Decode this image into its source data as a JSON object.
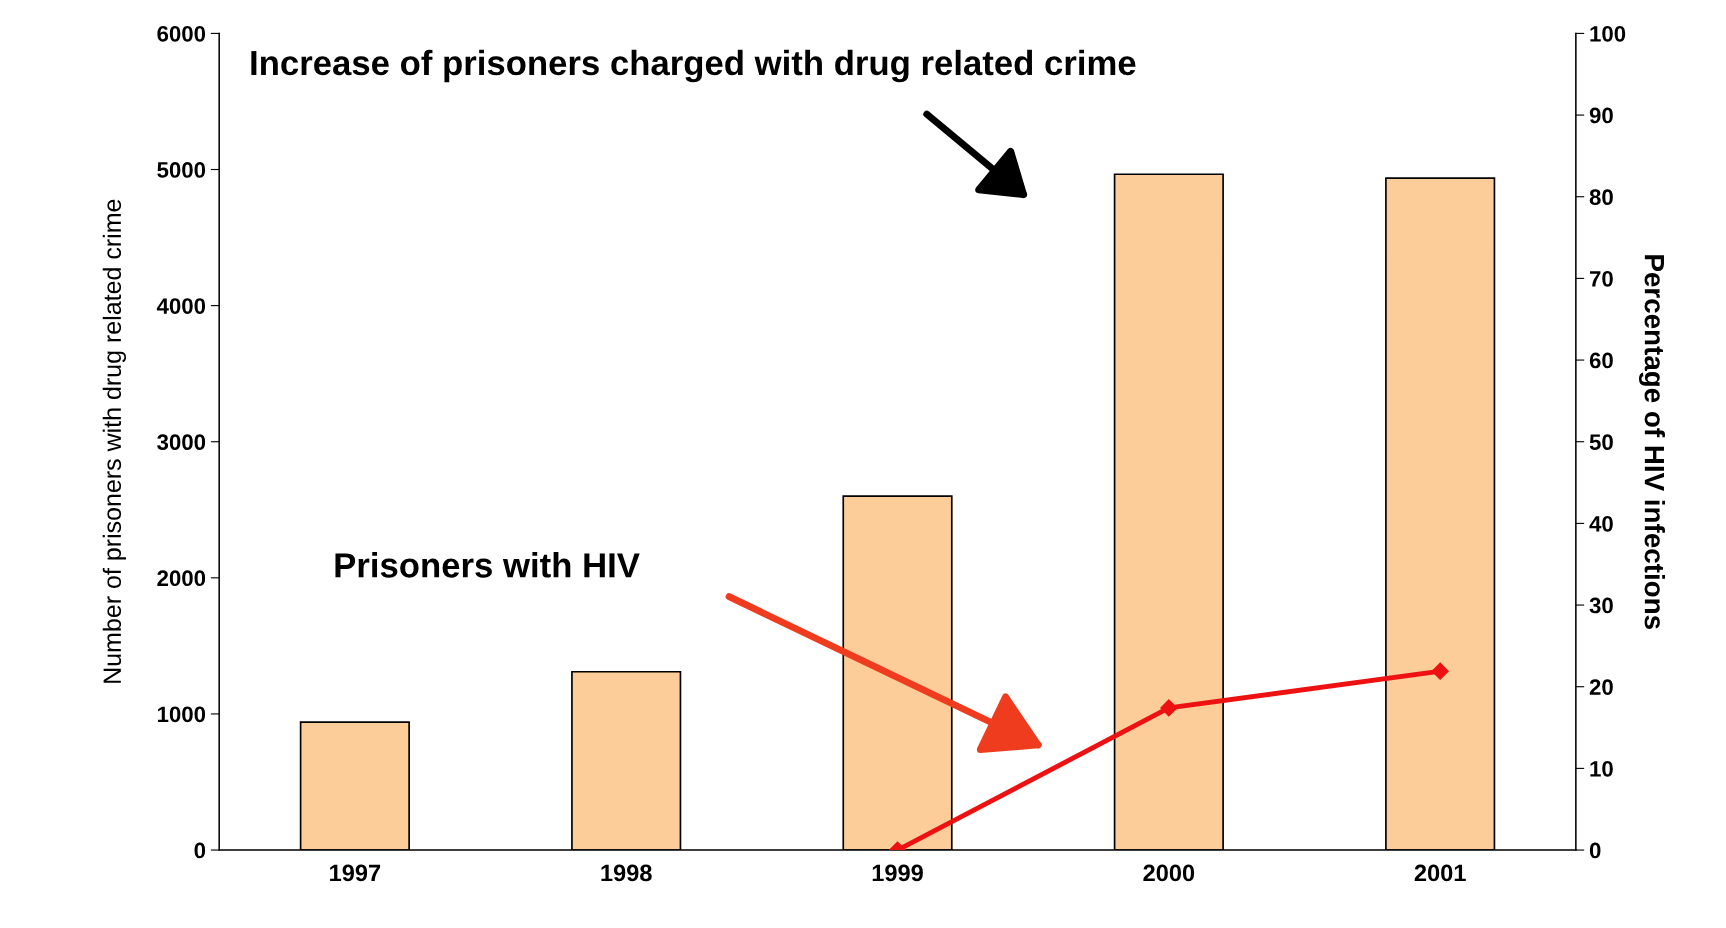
{
  "chart_data": {
    "type": "bar",
    "categories": [
      "1997",
      "1998",
      "1999",
      "2000",
      "2001"
    ],
    "ylabel": "Number of prisoners with drug related crime",
    "y2label": "Percentage of HIV infections",
    "series": [
      {
        "color": "#fccc99",
        "values": [
          940,
          1310,
          2600,
          4965,
          4937
        ]
      },
      {
        "type": "line",
        "axis": "y2",
        "color": "#ee1111",
        "values": [
          null,
          null,
          0,
          17.4,
          21.9
        ],
        "marker": "diamond",
        "line_style": "solid"
      }
    ],
    "annotations": [
      "Increase of prisoners charged with drug related crime",
      "Prisoners with HIV"
    ],
    "ylim": [
      0,
      6000
    ],
    "yticks": [
      0,
      1000,
      2000,
      3000,
      4000,
      5000,
      6000
    ],
    "y2lim": [
      0,
      100
    ],
    "y2ticks": [
      0,
      10,
      20,
      30,
      40,
      50,
      60,
      70,
      80,
      90,
      100
    ],
    "grid": false,
    "legend": false
  }
}
